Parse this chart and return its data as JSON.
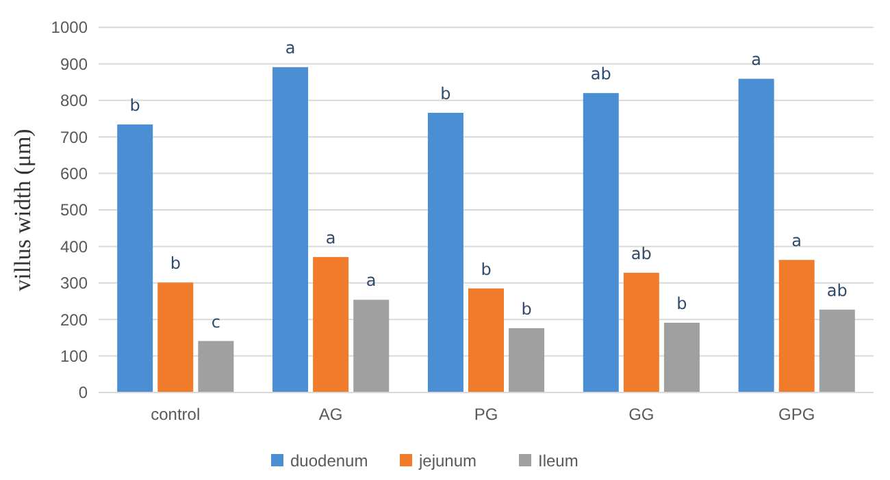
{
  "chart_data": {
    "type": "bar",
    "ylabel": "villus width (μm)",
    "categories": [
      "control",
      "AG",
      "PG",
      "GG",
      "GPG"
    ],
    "series": [
      {
        "name": "duodenum",
        "color": "#4a8ed4",
        "values": [
          734,
          891,
          766,
          820,
          859
        ]
      },
      {
        "name": "jejunum",
        "color": "#f07b2a",
        "values": [
          301,
          371,
          285,
          328,
          363
        ]
      },
      {
        "name": "Ileum",
        "color": "#a0a0a0",
        "values": [
          141,
          254,
          176,
          191,
          227
        ]
      }
    ],
    "ylim": [
      0,
      1000
    ],
    "yticks": [
      0,
      100,
      200,
      300,
      400,
      500,
      600,
      700,
      800,
      900,
      1000
    ],
    "grid": "y",
    "legend": "bottom",
    "annotations": [
      "b",
      "b",
      "c",
      "a",
      "a",
      "a",
      "b",
      "b",
      "b",
      "ab",
      "ab",
      "b",
      "a",
      "a",
      "ab"
    ]
  }
}
